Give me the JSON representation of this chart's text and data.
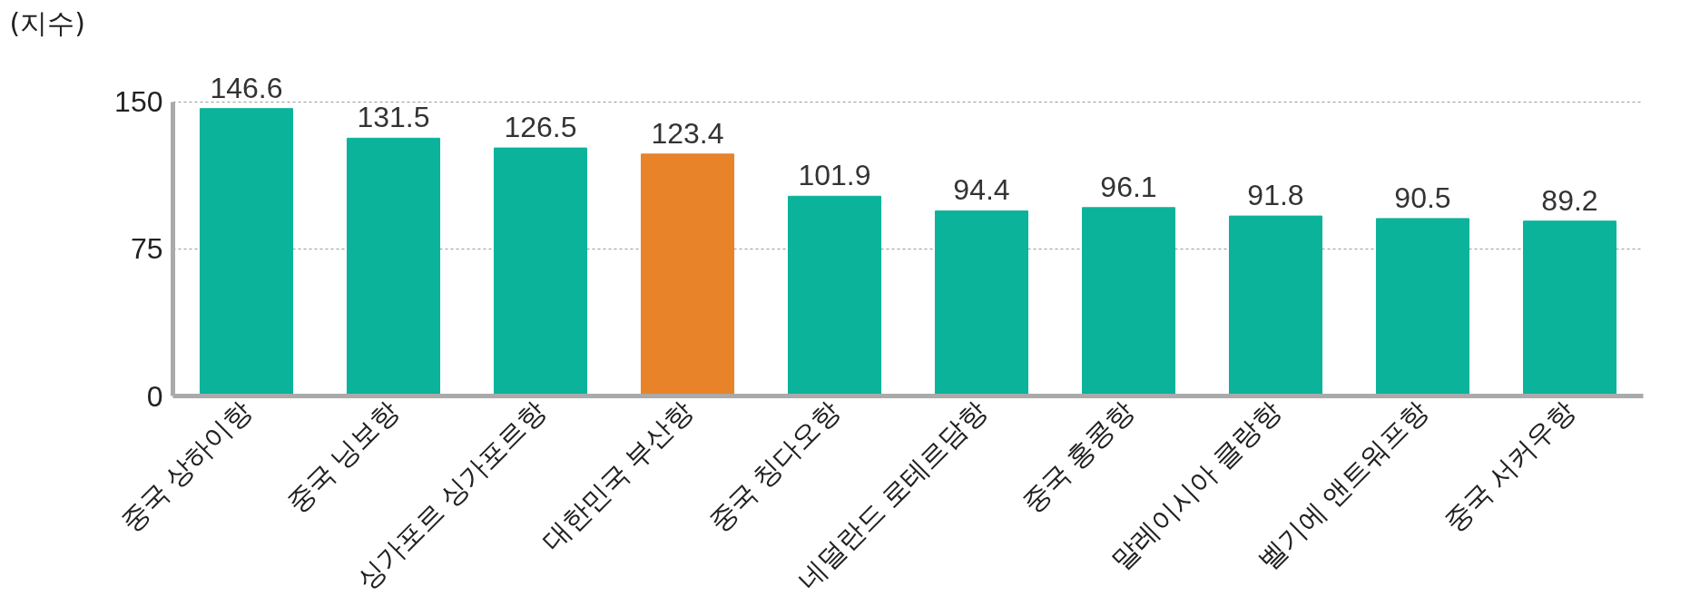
{
  "chart_data": {
    "type": "bar",
    "ylabel": "(지수)",
    "categories": [
      "중국 상하이항",
      "중국 닝보항",
      "싱가포르 싱가포르항",
      "대한민국 부산항",
      "중국 칭다오항",
      "네덜란드 로테르담항",
      "중국 홍콩항",
      "말레이시아 클랑항",
      "벨기에 앤트워프항",
      "중국 서커우항"
    ],
    "values": [
      146.6,
      131.5,
      126.5,
      123.4,
      101.9,
      94.4,
      96.1,
      91.8,
      90.5,
      89.2
    ],
    "colors": [
      "#0bb39a",
      "#0bb39a",
      "#0bb39a",
      "#e8832a",
      "#0bb39a",
      "#0bb39a",
      "#0bb39a",
      "#0bb39a",
      "#0bb39a",
      "#0bb39a"
    ],
    "ylim": [
      0,
      150
    ],
    "yticks": [
      0,
      75,
      150
    ],
    "grid": "y",
    "data_labels": true
  }
}
